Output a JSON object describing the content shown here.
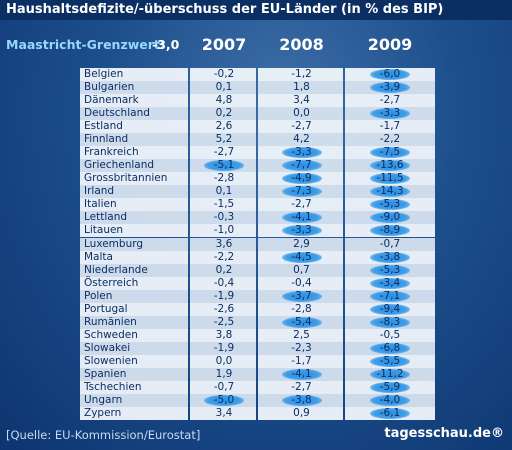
{
  "header": {
    "title": "Haushaltsdefizite/-überschuss der EU-Länder (in % des BIP)"
  },
  "legend": {
    "label": "Maastricht-Grenzwert:",
    "value": "-3,0"
  },
  "table": {
    "columns": [
      "2007",
      "2008",
      "2009"
    ],
    "rows": [
      [
        "Belgien",
        "-0,2",
        "-1,2",
        "-6,0"
      ],
      [
        "Bulgarien",
        "0,1",
        "1,8",
        "-3,9"
      ],
      [
        "Dänemark",
        "4,8",
        "3,4",
        "-2,7"
      ],
      [
        "Deutschland",
        "0,2",
        "0,0",
        "-3,3"
      ],
      [
        "Estland",
        "2,6",
        "-2,7",
        "-1,7"
      ],
      [
        "Finnland",
        "5,2",
        "4,2",
        "-2,2"
      ],
      [
        "Frankreich",
        "-2,7",
        "-3,3",
        "-7,5"
      ],
      [
        "Griechenland",
        "-5,1",
        "-7,7",
        "-13,6"
      ],
      [
        "Grossbritannien",
        "-2,8",
        "-4,9",
        "-11,5"
      ],
      [
        "Irland",
        "0,1",
        "-7,3",
        "-14,3"
      ],
      [
        "Italien",
        "-1,5",
        "-2,7",
        "-5,3"
      ],
      [
        "Lettland",
        "-0,3",
        "-4,1",
        "-9,0"
      ],
      [
        "Litauen",
        "-1,0",
        "-3,3",
        "-8,9"
      ],
      [
        "Luxemburg",
        "3,6",
        "2,9",
        "-0,7"
      ],
      [
        "Malta",
        "-2,2",
        "-4,5",
        "-3,8"
      ],
      [
        "Niederlande",
        "0,2",
        "0,7",
        "-5,3"
      ],
      [
        "Österreich",
        "-0,4",
        "-0,4",
        "-3,4"
      ],
      [
        "Polen",
        "-1,9",
        "-3,7",
        "-7,1"
      ],
      [
        "Portugal",
        "-2,6",
        "-2,8",
        "-9,4"
      ],
      [
        "Rumänien",
        "-2,5",
        "-5,4",
        "-8,3"
      ],
      [
        "Schweden",
        "3,8",
        "2,5",
        "-0,5"
      ],
      [
        "Slowakei",
        "-1,9",
        "-2,3",
        "-6,8"
      ],
      [
        "Slowenien",
        "0,0",
        "-1,7",
        "-5,5"
      ],
      [
        "Spanien",
        "1,9",
        "-4,1",
        "-11,2"
      ],
      [
        "Tschechien",
        "-0,7",
        "-2,7",
        "-5,9"
      ],
      [
        "Ungarn",
        "-5,0",
        "-3,8",
        "-4,0"
      ],
      [
        "Zypern",
        "3,4",
        "0,9",
        "-6,1"
      ]
    ]
  },
  "footer": {
    "source": "[Quelle: EU-Kommission/Eurostat]",
    "brand": "tagesschau.de®"
  }
}
